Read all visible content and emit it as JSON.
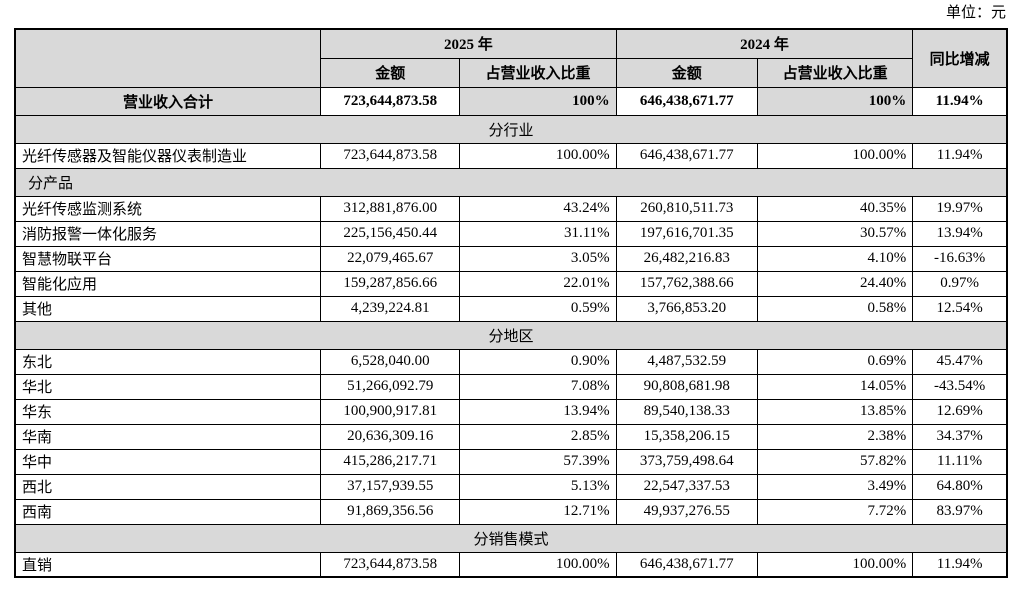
{
  "page": {
    "unit_label": "单位：元"
  },
  "table": {
    "header": {
      "col_2025": "2025 年",
      "col_2024": "2024 年",
      "yoy": "同比增减",
      "amount": "金额",
      "pct": "占营业收入比重"
    },
    "rows": [
      {
        "type": "total",
        "label": "营业收入合计",
        "a2025": "723,644,873.58",
        "p2025": "100%",
        "a2024": "646,438,671.77",
        "p2024": "100%",
        "yoy": "11.94%"
      },
      {
        "type": "section",
        "align": "center",
        "label": "分行业"
      },
      {
        "type": "data",
        "label": "光纤传感器及智能仪器仪表制造业",
        "a2025": "723,644,873.58",
        "p2025": "100.00%",
        "a2024": "646,438,671.77",
        "p2024": "100.00%",
        "yoy": "11.94%"
      },
      {
        "type": "section",
        "align": "left",
        "label": "分产品"
      },
      {
        "type": "data",
        "label": "光纤传感监测系统",
        "a2025": "312,881,876.00",
        "p2025": "43.24%",
        "a2024": "260,810,511.73",
        "p2024": "40.35%",
        "yoy": "19.97%"
      },
      {
        "type": "data",
        "label": "消防报警一体化服务",
        "a2025": "225,156,450.44",
        "p2025": "31.11%",
        "a2024": "197,616,701.35",
        "p2024": "30.57%",
        "yoy": "13.94%"
      },
      {
        "type": "data",
        "label": "智慧物联平台",
        "a2025": "22,079,465.67",
        "p2025": "3.05%",
        "a2024": "26,482,216.83",
        "p2024": "4.10%",
        "yoy": "-16.63%"
      },
      {
        "type": "data",
        "label": "智能化应用",
        "a2025": "159,287,856.66",
        "p2025": "22.01%",
        "a2024": "157,762,388.66",
        "p2024": "24.40%",
        "yoy": "0.97%"
      },
      {
        "type": "data",
        "label": "其他",
        "a2025": "4,239,224.81",
        "p2025": "0.59%",
        "a2024": "3,766,853.20",
        "p2024": "0.58%",
        "yoy": "12.54%"
      },
      {
        "type": "section",
        "align": "center",
        "label": "分地区"
      },
      {
        "type": "data",
        "label": "东北",
        "a2025": "6,528,040.00",
        "p2025": "0.90%",
        "a2024": "4,487,532.59",
        "p2024": "0.69%",
        "yoy": "45.47%"
      },
      {
        "type": "data",
        "label": "华北",
        "a2025": "51,266,092.79",
        "p2025": "7.08%",
        "a2024": "90,808,681.98",
        "p2024": "14.05%",
        "yoy": "-43.54%"
      },
      {
        "type": "data",
        "label": "华东",
        "a2025": "100,900,917.81",
        "p2025": "13.94%",
        "a2024": "89,540,138.33",
        "p2024": "13.85%",
        "yoy": "12.69%"
      },
      {
        "type": "data",
        "label": "华南",
        "a2025": "20,636,309.16",
        "p2025": "2.85%",
        "a2024": "15,358,206.15",
        "p2024": "2.38%",
        "yoy": "34.37%"
      },
      {
        "type": "data",
        "label": "华中",
        "a2025": "415,286,217.71",
        "p2025": "57.39%",
        "a2024": "373,759,498.64",
        "p2024": "57.82%",
        "yoy": "11.11%"
      },
      {
        "type": "data",
        "label": "西北",
        "a2025": "37,157,939.55",
        "p2025": "5.13%",
        "a2024": "22,547,337.53",
        "p2024": "3.49%",
        "yoy": "64.80%"
      },
      {
        "type": "data",
        "label": "西南",
        "a2025": "91,869,356.56",
        "p2025": "12.71%",
        "a2024": "49,937,276.55",
        "p2024": "7.72%",
        "yoy": "83.97%"
      },
      {
        "type": "section",
        "align": "center",
        "label": "分销售模式"
      },
      {
        "type": "data",
        "label": "直销",
        "a2025": "723,644,873.58",
        "p2025": "100.00%",
        "a2024": "646,438,671.77",
        "p2024": "100.00%",
        "yoy": "11.94%"
      }
    ]
  }
}
